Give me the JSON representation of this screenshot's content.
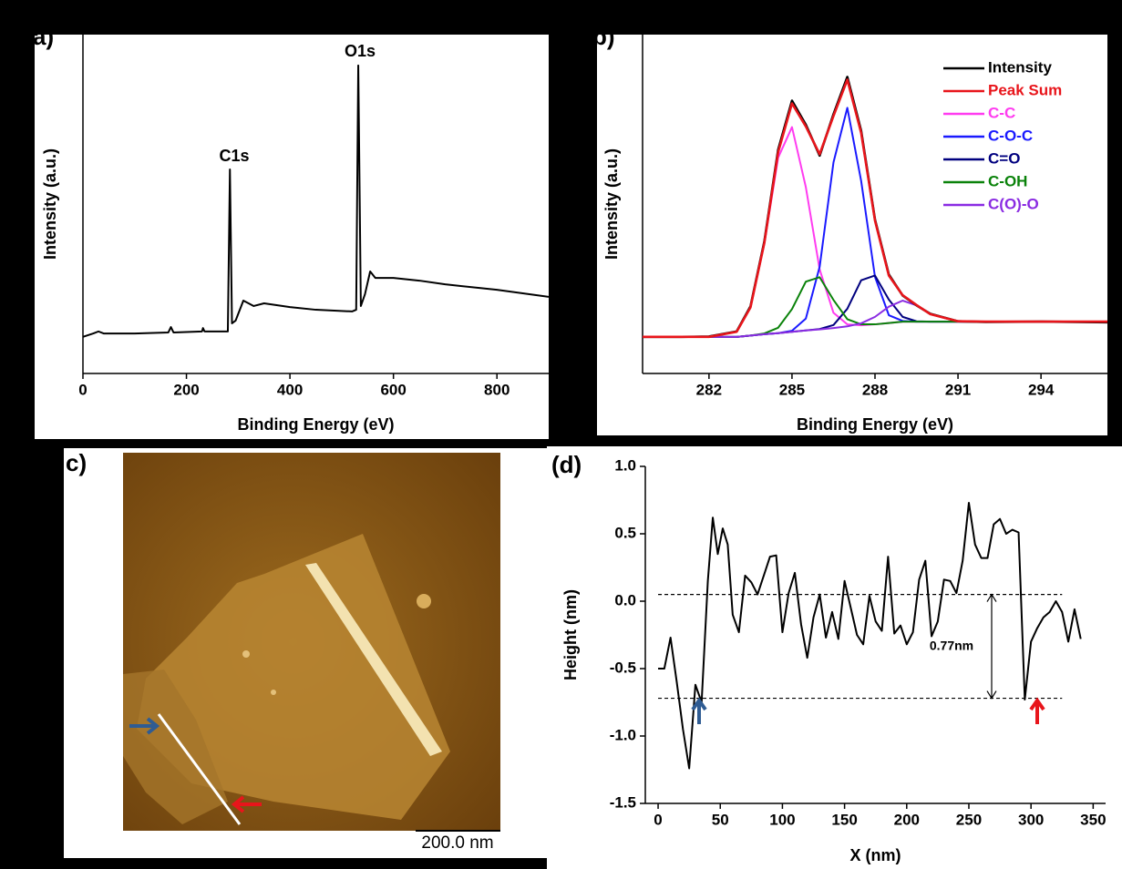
{
  "chart_data": [
    {
      "type": "line",
      "label": "a)",
      "xlabel": "Binding Energy (eV)",
      "ylabel": "Intensity (a.u.)",
      "annotations": [
        "C1s",
        "O1s"
      ],
      "x": [
        0,
        20,
        30,
        40,
        100,
        165,
        170,
        175,
        230,
        232,
        235,
        280,
        284,
        288,
        295,
        310,
        330,
        350,
        400,
        450,
        520,
        528,
        532,
        537,
        545,
        555,
        565,
        600,
        650,
        700,
        800,
        900
      ],
      "values": [
        10.8,
        11.8,
        12.4,
        11.8,
        11.8,
        12.1,
        13.7,
        12.1,
        12.4,
        13.4,
        12.4,
        12.4,
        60.2,
        14.8,
        15.6,
        21.5,
        19.9,
        20.7,
        19.6,
        18.8,
        18.3,
        18.8,
        90.9,
        19.9,
        23.4,
        30.1,
        28.2,
        28.2,
        27.4,
        26.3,
        24.7,
        22.6
      ],
      "color": "#000000",
      "xlim": [
        0,
        900
      ],
      "xticks": [
        0,
        200,
        400,
        600,
        800
      ],
      "ylim": [
        0,
        100
      ]
    },
    {
      "type": "line",
      "label": "b)",
      "xlabel": "Binding Energy (eV)",
      "ylabel": "Intensity (a.u.)",
      "legend": "upper right",
      "x": [
        279.6,
        281,
        282,
        283,
        283.5,
        284,
        284.5,
        285,
        285.5,
        286,
        286.5,
        287,
        287.5,
        288,
        288.5,
        289,
        289.5,
        290,
        291,
        292,
        294,
        296.4
      ],
      "series": [
        {
          "name": "Intensity",
          "color": "#000000",
          "values": [
            10.8,
            10.8,
            10.9,
            12.4,
            19.8,
            38.9,
            66.0,
            80.5,
            73.4,
            64.3,
            76.5,
            87.5,
            71.6,
            45.4,
            29.2,
            23.0,
            20.1,
            17.6,
            15.4,
            15.2,
            15.3,
            15.1
          ]
        },
        {
          "name": "Peak Sum",
          "color": "#e8151b",
          "values": [
            10.8,
            10.8,
            10.8,
            12.3,
            19.5,
            38.5,
            65.3,
            79.7,
            72.9,
            64.7,
            76.0,
            86.7,
            71.0,
            45.1,
            28.9,
            23.1,
            20.2,
            17.5,
            15.4,
            15.3,
            15.3,
            15.3
          ]
        },
        {
          "name": "C-C",
          "color": "#ff3cf0",
          "values": [
            10.8,
            10.8,
            10.8,
            12.3,
            19.5,
            38.3,
            63.7,
            72.7,
            55.0,
            30.7,
            17.9,
            14.5,
            14.2,
            14.5,
            14.9,
            15.3,
            15.3,
            15.3,
            15.3,
            15.3,
            15.3,
            15.3
          ]
        },
        {
          "name": "C-O-C",
          "color": "#1a1aff",
          "values": [
            10.8,
            10.8,
            10.8,
            10.8,
            11.2,
            11.6,
            11.9,
            12.6,
            16.2,
            31.5,
            62.3,
            78.4,
            56.8,
            28.5,
            17.2,
            15.5,
            15.3,
            15.3,
            15.3,
            15.3,
            15.3,
            15.3
          ]
        },
        {
          "name": "C=O",
          "color": "#00007f",
          "values": [
            10.8,
            10.8,
            10.8,
            10.8,
            11.2,
            11.6,
            11.9,
            12.3,
            12.7,
            13.1,
            14.3,
            19.1,
            27.5,
            28.9,
            21.8,
            16.7,
            15.4,
            15.3,
            15.3,
            15.3,
            15.3,
            15.3
          ]
        },
        {
          "name": "C-OH",
          "color": "#0a820a",
          "values": [
            10.8,
            10.8,
            10.8,
            10.8,
            11.2,
            11.8,
            13.5,
            19.0,
            27.1,
            28.4,
            21.7,
            16.0,
            14.5,
            14.5,
            14.9,
            15.3,
            15.3,
            15.3,
            15.3,
            15.3,
            15.3,
            15.3
          ]
        },
        {
          "name": "C(O)-O",
          "color": "#8a2be2",
          "values": [
            10.8,
            10.8,
            10.8,
            10.8,
            11.2,
            11.6,
            11.9,
            12.3,
            12.7,
            13.0,
            13.4,
            13.9,
            14.8,
            16.7,
            19.7,
            21.5,
            20.1,
            17.5,
            15.4,
            15.3,
            15.3,
            15.3
          ]
        }
      ],
      "xlim": [
        279.6,
        296.4
      ],
      "xticks": [
        282,
        285,
        288,
        291,
        294
      ],
      "ylim": [
        0,
        100
      ]
    },
    {
      "type": "line",
      "label": "(d)",
      "xlabel": "X (nm)",
      "ylabel": "Height (nm)",
      "annotations": [
        "0.77nm"
      ],
      "x": [
        0,
        5,
        10,
        15,
        20,
        25,
        30,
        35,
        40,
        44,
        48,
        52,
        56,
        60,
        65,
        70,
        75,
        80,
        85,
        90,
        95,
        100,
        105,
        110,
        115,
        120,
        125,
        130,
        135,
        140,
        145,
        150,
        155,
        160,
        165,
        170,
        175,
        180,
        185,
        190,
        195,
        200,
        205,
        210,
        215,
        220,
        225,
        230,
        235,
        240,
        245,
        250,
        255,
        260,
        265,
        270,
        275,
        280,
        285,
        290,
        295,
        300,
        305,
        310,
        315,
        320,
        325,
        330,
        335,
        340
      ],
      "values": [
        -0.5,
        -0.5,
        -0.27,
        -0.6,
        -0.95,
        -1.24,
        -0.62,
        -0.75,
        0.15,
        0.62,
        0.35,
        0.54,
        0.42,
        -0.1,
        -0.23,
        0.19,
        0.14,
        0.05,
        0.19,
        0.33,
        0.34,
        -0.23,
        0.06,
        0.21,
        -0.17,
        -0.42,
        -0.12,
        0.05,
        -0.27,
        -0.08,
        -0.28,
        0.15,
        -0.05,
        -0.25,
        -0.32,
        0.04,
        -0.15,
        -0.22,
        0.33,
        -0.24,
        -0.18,
        -0.32,
        -0.23,
        0.16,
        0.3,
        -0.26,
        -0.15,
        0.16,
        0.15,
        0.06,
        0.3,
        0.73,
        0.42,
        0.32,
        0.32,
        0.57,
        0.61,
        0.5,
        0.53,
        0.51,
        -0.73,
        -0.3,
        -0.2,
        -0.12,
        -0.08,
        0,
        -0.08,
        -0.3,
        -0.06,
        -0.28
      ],
      "color": "#000000",
      "hlines": [
        0.05,
        -0.72
      ],
      "xlim": [
        -10.3,
        360
      ],
      "xticks": [
        0,
        50,
        100,
        150,
        200,
        250,
        300,
        350
      ],
      "ylim": [
        -1.5,
        1.0
      ],
      "yticks": [
        {
          "value": 1,
          "label": "1.0"
        },
        0.5,
        {
          "value": 0,
          "label": "0.0"
        },
        -0.5,
        {
          "value": -1,
          "label": "-1.0"
        },
        -1.5
      ]
    }
  ],
  "image": {
    "label": "c)",
    "scale_bar": "200.0 nm"
  }
}
